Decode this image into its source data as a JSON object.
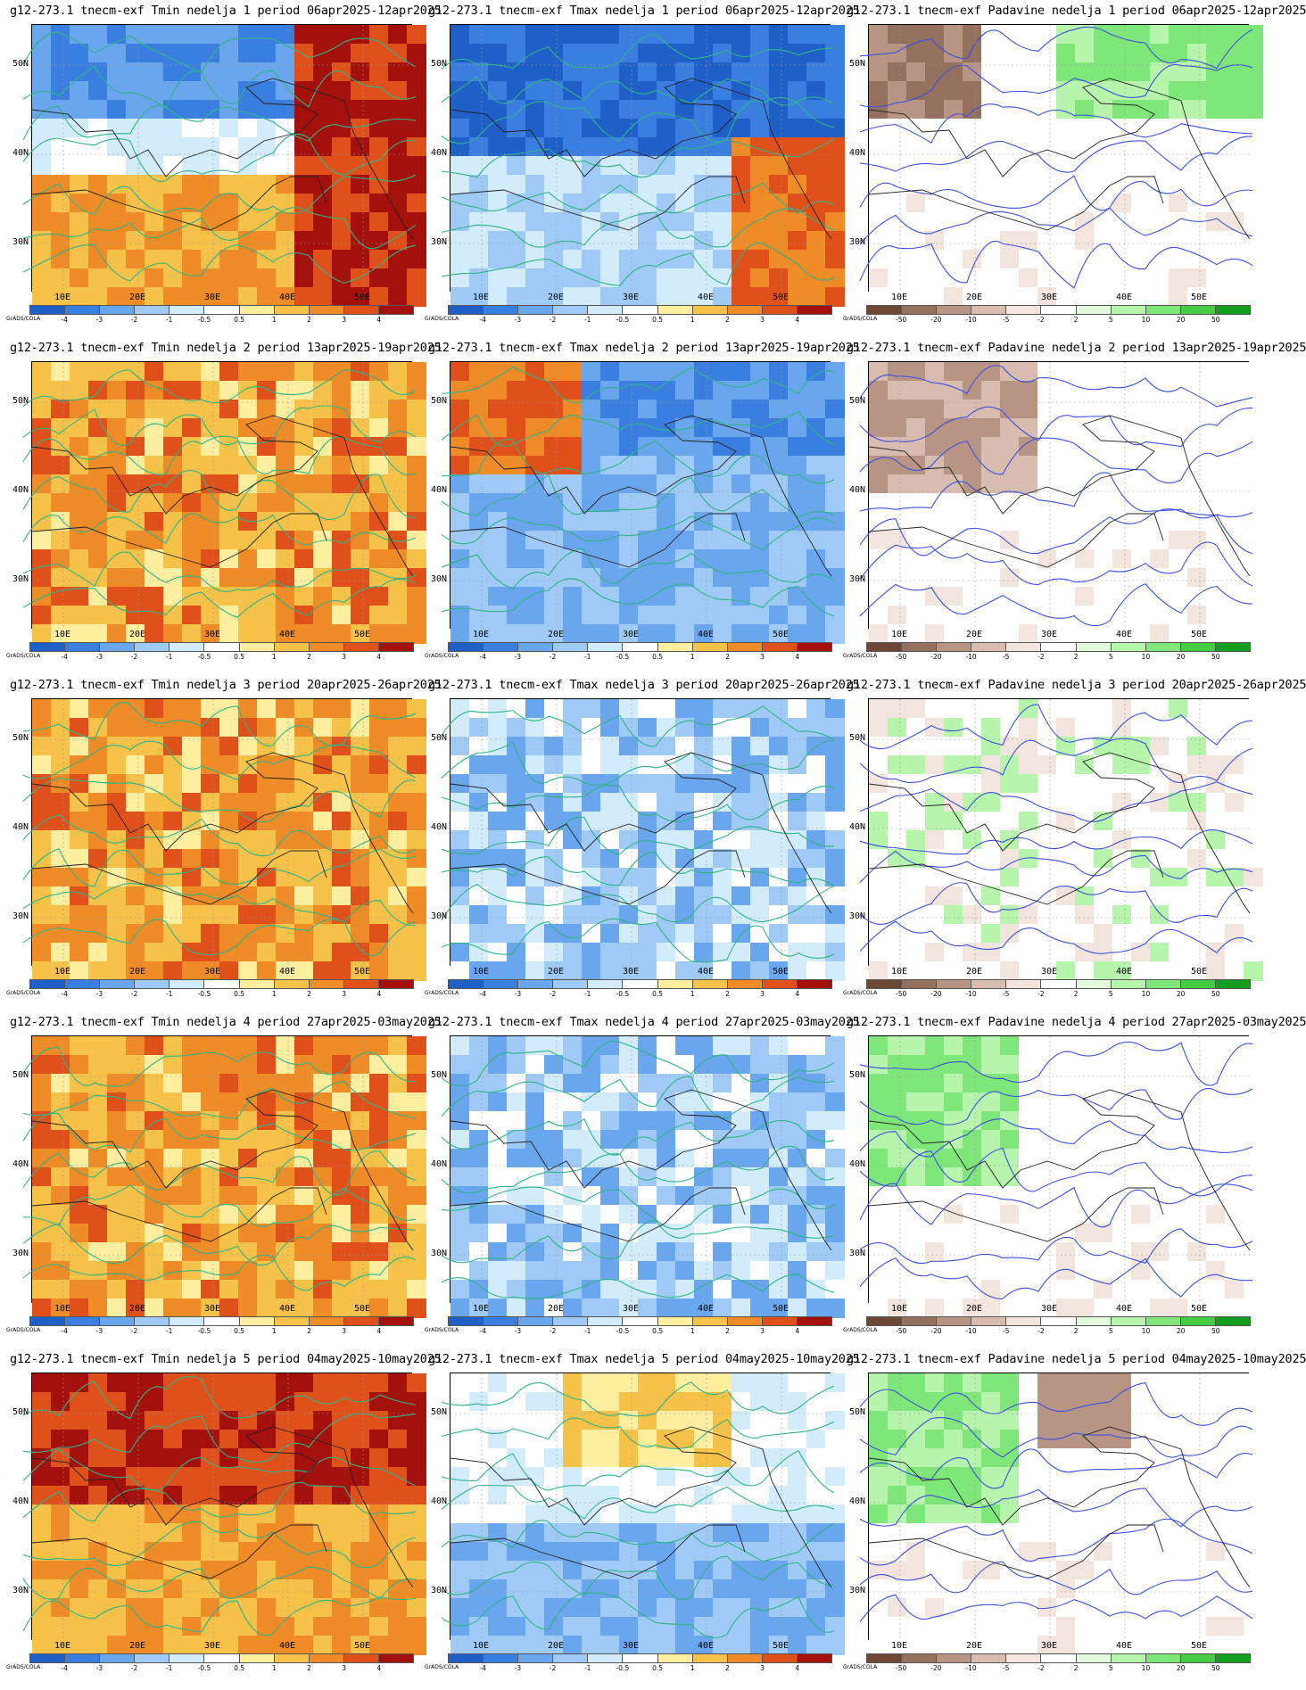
{
  "credit": "GrADS/COLA",
  "axes": {
    "lat": [
      "50N",
      "40N",
      "30N"
    ],
    "lon": [
      "10E",
      "20E",
      "30E",
      "40E",
      "50E"
    ]
  },
  "scales": {
    "temp": {
      "labels": [
        "-4",
        "-3",
        "-2",
        "-1",
        "-0.5",
        "0.5",
        "1",
        "2",
        "3",
        "4"
      ],
      "colors": [
        "#1f5fc8",
        "#3a7fe0",
        "#6aa6ee",
        "#9fcaf6",
        "#d2ecfb",
        "#ffffff",
        "#fdeea0",
        "#f6c24a",
        "#f08c28",
        "#e0501a",
        "#a4100c"
      ]
    },
    "precip": {
      "labels": [
        "-50",
        "-20",
        "-10",
        "-5",
        "-2",
        "2",
        "5",
        "10",
        "20",
        "50"
      ],
      "colors": [
        "#6e4836",
        "#94705e",
        "#b89484",
        "#d8bcb0",
        "#f1e5de",
        "#ffffff",
        "#e3fbdc",
        "#b8f5ac",
        "#7fe67a",
        "#44cc44",
        "#139f1d"
      ]
    }
  },
  "weeks": [
    {
      "tmin_title": "g12-273.1 tnecm-exf Tmin nedelja 1 period 06apr2025-12apr2025",
      "tmax_title": "g12-273.1 tnecm-exf Tmax nedelja 1 period 06apr2025-12apr2025",
      "prec_title": "g12-273.1 tnecm-exf Padavine nedelja 1 period 06apr2025-12apr2025",
      "tmin_tone": "mixed-warm-east",
      "tmax_tone": "cold",
      "prec_tone": "wet-north-dry-west"
    },
    {
      "tmin_title": "g12-273.1 tnecm-exf Tmin nedelja 2 period 13apr2025-19apr2025",
      "tmax_title": "g12-273.1 tnecm-exf Tmax nedelja 2 period 13apr2025-19apr2025",
      "prec_title": "g12-273.1 tnecm-exf Padavine nedelja 2 period 13apr2025-19apr2025",
      "tmin_tone": "warm",
      "tmax_tone": "cool-warm-west",
      "prec_tone": "dry-north"
    },
    {
      "tmin_title": "g12-273.1 tnecm-exf Tmin nedelja 3 period 20apr2025-26apr2025",
      "tmax_title": "g12-273.1 tnecm-exf Tmax nedelja 3 period 20apr2025-26apr2025",
      "prec_title": "g12-273.1 tnecm-exf Padavine nedelja 3 period 20apr2025-26apr2025",
      "tmin_tone": "warm",
      "tmax_tone": "cool",
      "prec_tone": "mixed"
    },
    {
      "tmin_title": "g12-273.1 tnecm-exf Tmin nedelja 4 period 27apr2025-03may2025",
      "tmax_title": "g12-273.1 tnecm-exf Tmax nedelja 4 period 27apr2025-03may2025",
      "prec_title": "g12-273.1 tnecm-exf Padavine nedelja 4 period 27apr2025-03may2025",
      "tmin_tone": "warm",
      "tmax_tone": "cool",
      "prec_tone": "wet-west"
    },
    {
      "tmin_title": "g12-273.1 tnecm-exf Tmin nedelja 5 period 04may2025-10may2025",
      "tmax_title": "g12-273.1 tnecm-exf Tmax nedelja 5 period 04may2025-10may2025",
      "prec_title": "g12-273.1 tnecm-exf Padavine nedelja 5 period 04may2025-10may2025",
      "tmin_tone": "hot",
      "tmax_tone": "cool-warm-north",
      "prec_tone": "wet-west-dry-ne"
    }
  ]
}
